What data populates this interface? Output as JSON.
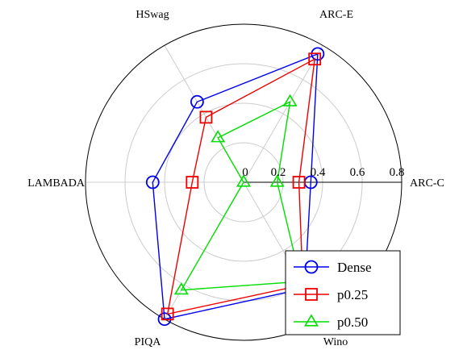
{
  "chart_data": {
    "type": "radar",
    "axes": [
      "ARC-C",
      "ARC-E",
      "HSwag",
      "LAMBADA",
      "PIQA",
      "Wino"
    ],
    "rlim": [
      0,
      0.8
    ],
    "rticks": [
      "0",
      "0.2",
      "0.4",
      "0.6",
      "0.8"
    ],
    "rtick_values": [
      0,
      0.2,
      0.4,
      0.6,
      0.8
    ],
    "grid": true,
    "legend_position": "bottom-right",
    "series": [
      {
        "name": "Dense",
        "values": [
          0.34,
          0.75,
          0.47,
          0.46,
          0.8,
          0.62
        ],
        "color": "#0000ee",
        "marker": "circle"
      },
      {
        "name": "p0.25",
        "values": [
          0.28,
          0.72,
          0.38,
          0.26,
          0.77,
          0.6
        ],
        "color": "#ee0000",
        "marker": "square"
      },
      {
        "name": "p0.50",
        "values": [
          0.17,
          0.47,
          0.26,
          0.0,
          0.63,
          0.58
        ],
        "color": "#00dd00",
        "marker": "triangle"
      }
    ]
  }
}
